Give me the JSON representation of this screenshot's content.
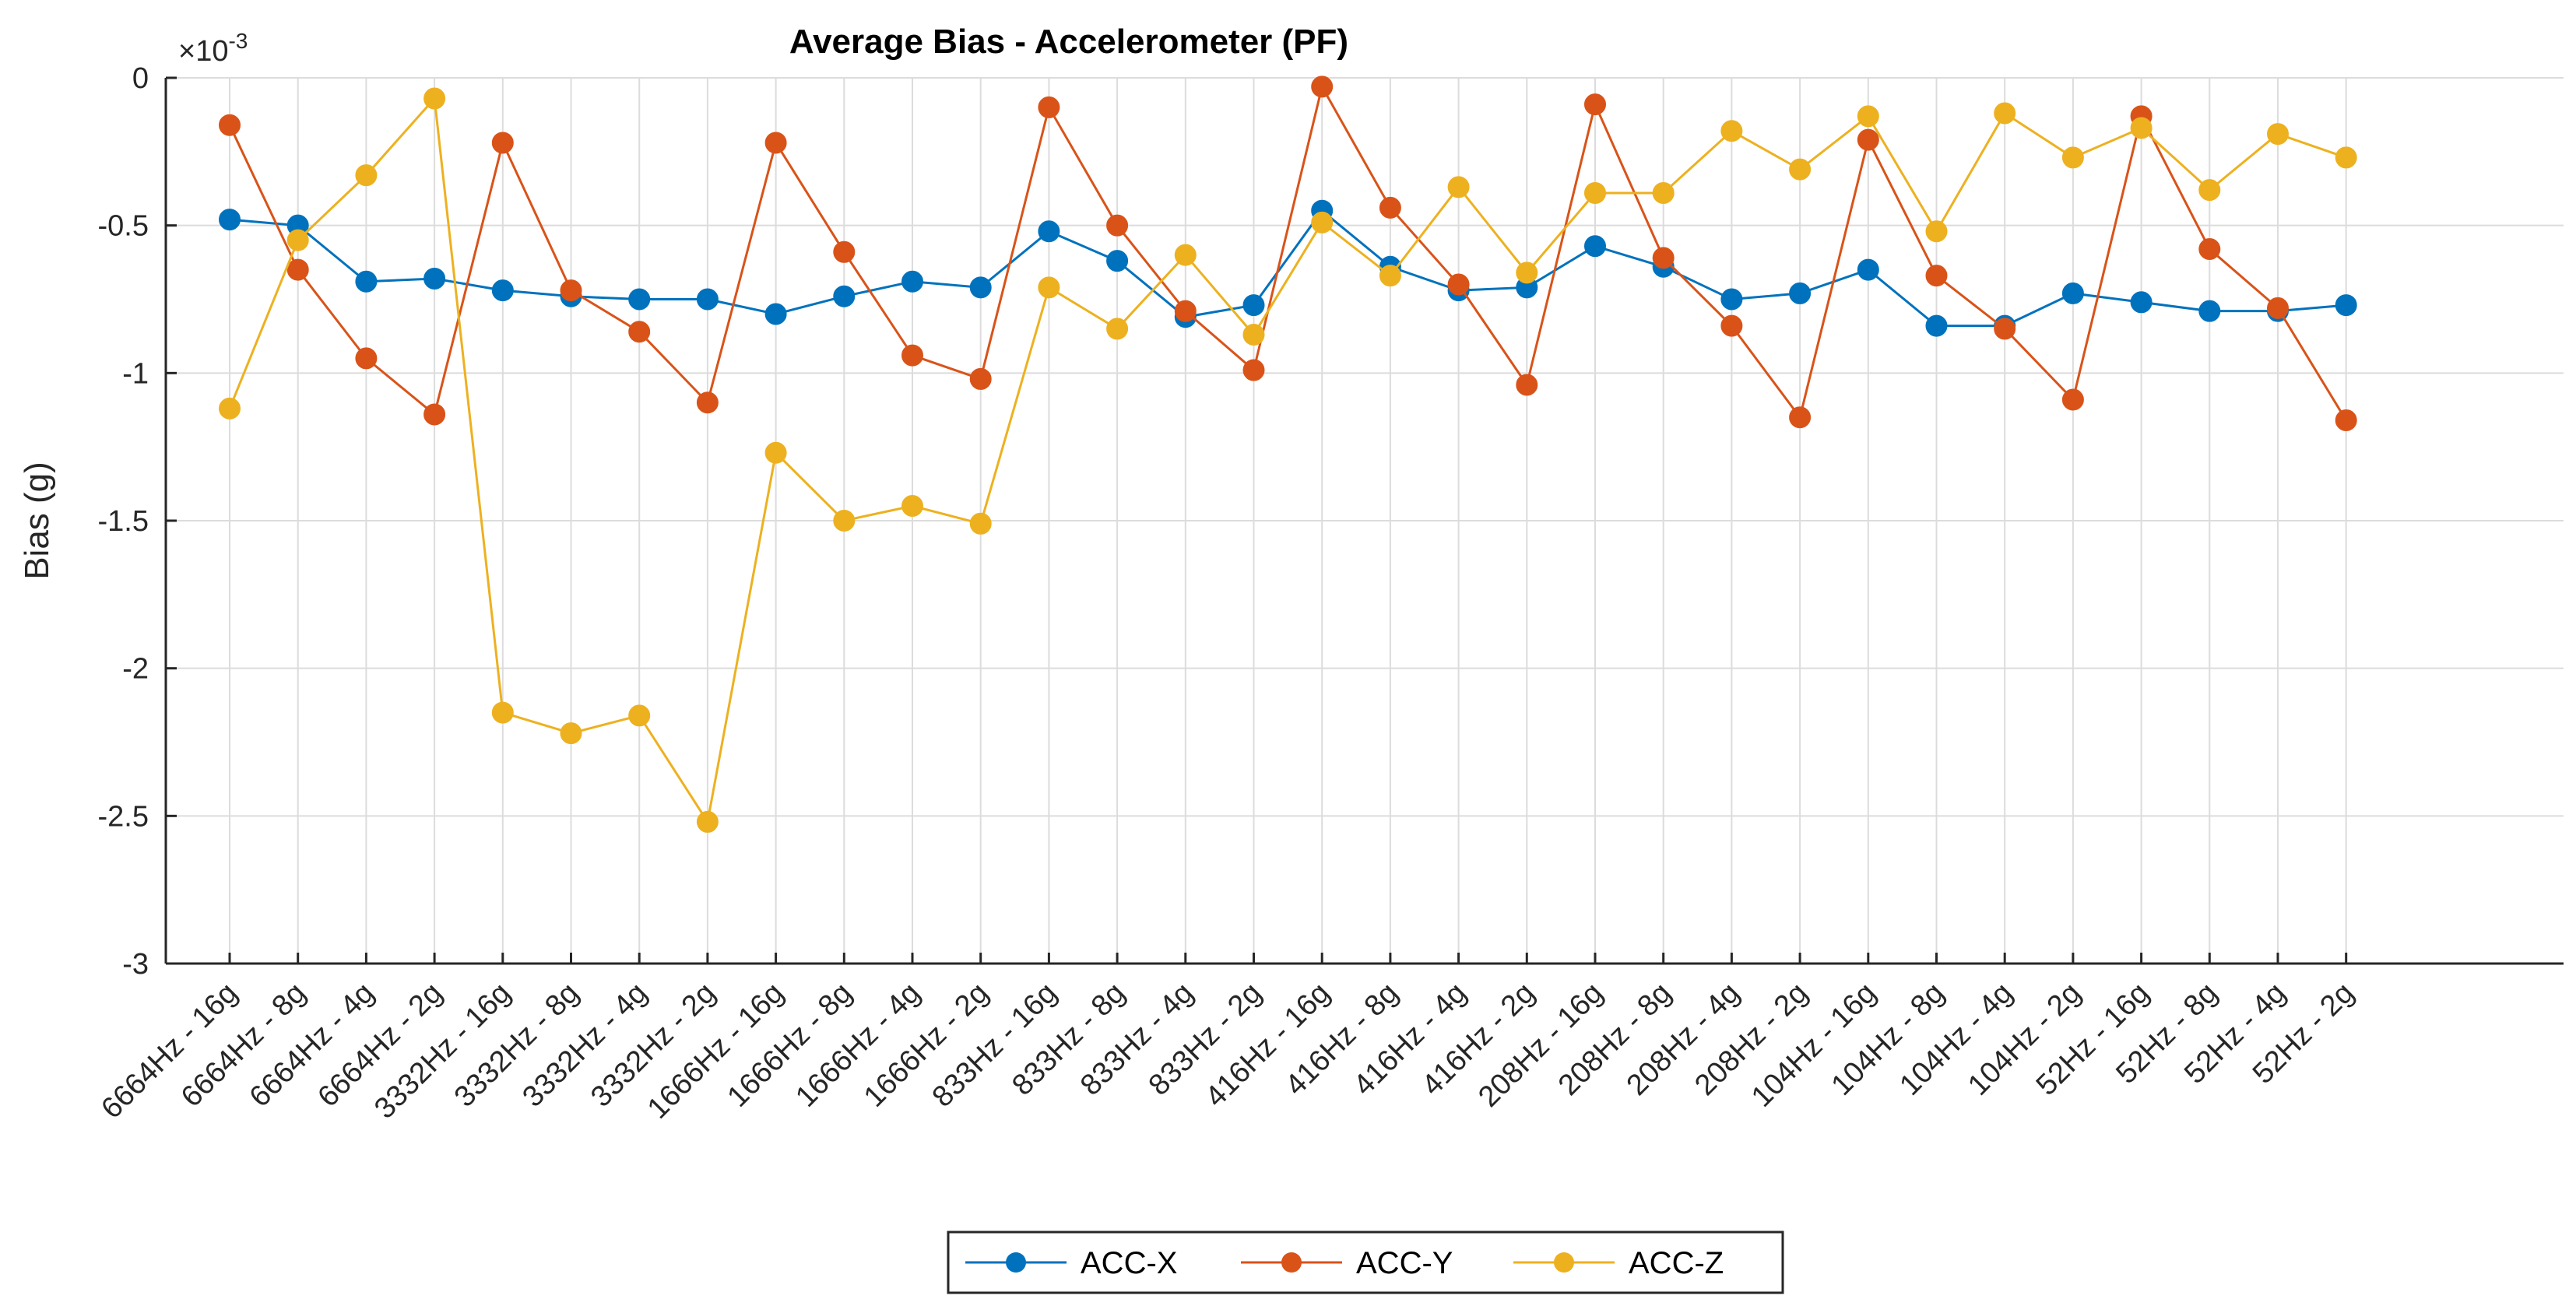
{
  "chart_data": {
    "type": "line",
    "title": "Average Bias - Accelerometer (PF)",
    "xlabel": "",
    "ylabel": "Bias (g)",
    "y_exponent": {
      "base": "×10",
      "power": "-3"
    },
    "ylim": [
      -3,
      0
    ],
    "yticks": [
      0,
      -0.5,
      -1,
      -1.5,
      -2,
      -2.5,
      -3
    ],
    "ytick_labels": [
      "0",
      "-0.5",
      "-1",
      "-1.5",
      "-2",
      "-2.5",
      "-3"
    ],
    "grid": true,
    "legend_position": "bottom-center",
    "categories": [
      "6664Hz - 16g",
      "6664Hz - 8g",
      "6664Hz - 4g",
      "6664Hz - 2g",
      "3332Hz - 16g",
      "3332Hz - 8g",
      "3332Hz - 4g",
      "3332Hz - 2g",
      "1666Hz - 16g",
      "1666Hz - 8g",
      "1666Hz - 4g",
      "1666Hz - 2g",
      "833Hz - 16g",
      "833Hz - 8g",
      "833Hz - 4g",
      "833Hz - 2g",
      "416Hz - 16g",
      "416Hz - 8g",
      "416Hz - 4g",
      "416Hz - 2g",
      "208Hz - 16g",
      "208Hz - 8g",
      "208Hz - 4g",
      "208Hz - 2g",
      "104Hz - 16g",
      "104Hz - 8g",
      "104Hz - 4g",
      "104Hz - 2g",
      "52Hz - 16g",
      "52Hz - 8g",
      "52Hz - 4g",
      "52Hz - 2g"
    ],
    "series": [
      {
        "name": "ACC-X",
        "color": "#0072BD",
        "values": [
          -0.48,
          -0.5,
          -0.69,
          -0.68,
          -0.72,
          -0.74,
          -0.75,
          -0.75,
          -0.8,
          -0.74,
          -0.69,
          -0.71,
          -0.52,
          -0.62,
          -0.81,
          -0.77,
          -0.45,
          -0.64,
          -0.72,
          -0.71,
          -0.57,
          -0.64,
          -0.75,
          -0.73,
          -0.65,
          -0.84,
          -0.84,
          -0.73,
          -0.76,
          -0.79,
          -0.79,
          -0.77
        ]
      },
      {
        "name": "ACC-Y",
        "color": "#D95319",
        "values": [
          -0.16,
          -0.65,
          -0.95,
          -1.14,
          -0.22,
          -0.72,
          -0.86,
          -1.1,
          -0.22,
          -0.59,
          -0.94,
          -1.02,
          -0.1,
          -0.5,
          -0.79,
          -0.99,
          -0.03,
          -0.44,
          -0.7,
          -1.04,
          -0.09,
          -0.61,
          -0.84,
          -1.15,
          -0.21,
          -0.67,
          -0.85,
          -1.09,
          -0.13,
          -0.58,
          -0.78,
          -1.16
        ]
      },
      {
        "name": "ACC-Z",
        "color": "#EDB120",
        "values": [
          -1.12,
          -0.55,
          -0.33,
          -0.07,
          -2.15,
          -2.22,
          -2.16,
          -2.52,
          -1.27,
          -1.5,
          -1.45,
          -1.51,
          -0.71,
          -0.85,
          -0.6,
          -0.87,
          -0.49,
          -0.67,
          -0.37,
          -0.66,
          -0.39,
          -0.39,
          -0.18,
          -0.31,
          -0.13,
          -0.52,
          -0.12,
          -0.27,
          -0.17,
          -0.38,
          -0.19,
          -0.27
        ]
      }
    ]
  }
}
